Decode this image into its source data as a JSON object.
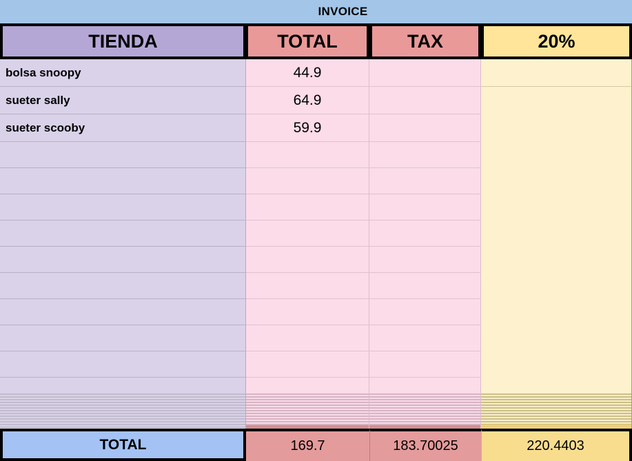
{
  "sheet_title": "INVOICE",
  "header": {
    "tienda": "TIENDA",
    "total": "TOTAL",
    "tax": "TAX",
    "pct": "20%"
  },
  "rows": [
    {
      "tienda": "bolsa snoopy",
      "total": "44.9",
      "tax": "",
      "pct": ""
    },
    {
      "tienda": "sueter sally",
      "total": "64.9",
      "tax": "",
      "pct": ""
    },
    {
      "tienda": "sueter scooby",
      "total": "59.9",
      "tax": "",
      "pct": ""
    }
  ],
  "footer": {
    "label": "TOTAL",
    "total": "169.7",
    "tax": "183.70025",
    "pct": "220.4403"
  },
  "colors": {
    "title_bar_blue": "#a2c5e8",
    "header_purple": "#b4a7d6",
    "header_red": "#ea9999",
    "header_yellow": "#ffe599",
    "cell_purple": "#d9d2e9",
    "cell_pink": "#fbdce8",
    "cell_yellow": "#fdf2cd",
    "footer_blue": "#a4c2f4",
    "footer_red": "#e49b9b",
    "footer_yellow": "#f9dd8f"
  }
}
